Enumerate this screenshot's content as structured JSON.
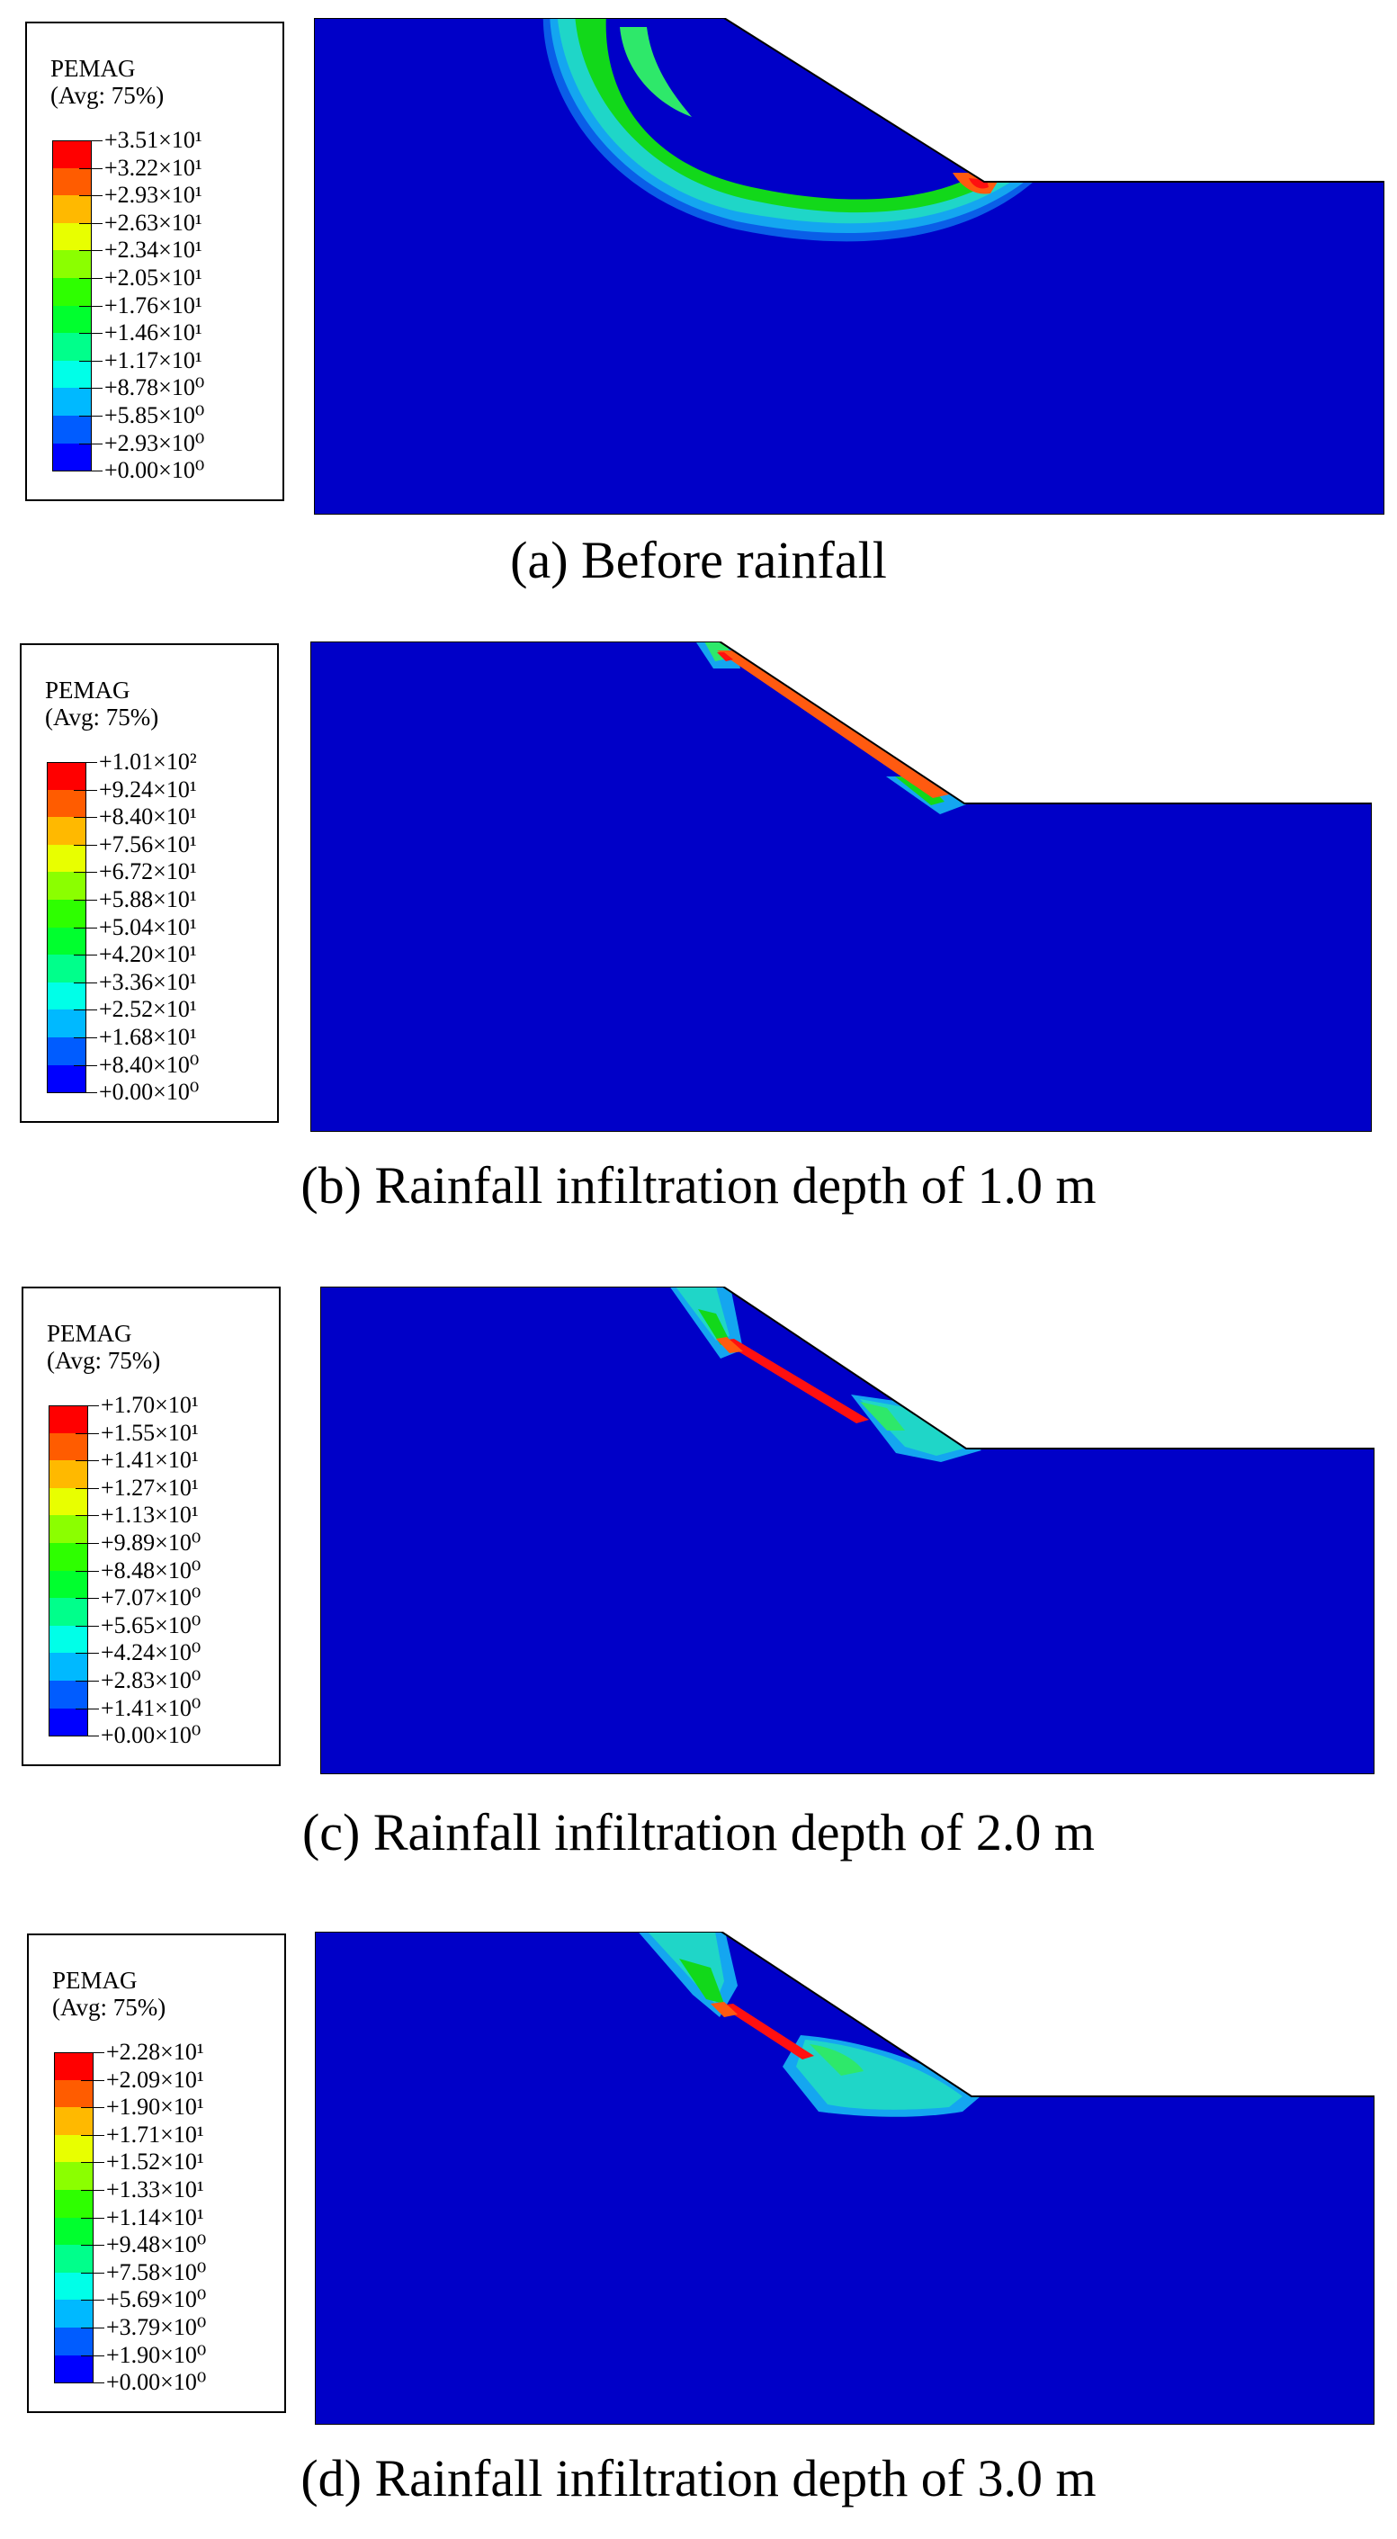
{
  "colors": {
    "blue": "#0000c8",
    "scale": [
      "#0000ff",
      "#005cff",
      "#00b9ff",
      "#00ffe8",
      "#00ff8b",
      "#00ff2e",
      "#2eff00",
      "#8bff00",
      "#e8ff00",
      "#ffb900",
      "#ff5c00",
      "#ff0000"
    ],
    "contour_green": "#12d81a",
    "contour_lightgreen": "#2ee86a",
    "contour_cyan": "#1fd6c8",
    "contour_sky": "#14a6f0",
    "contour_mid": "#0a5ee8",
    "band_orange": "#ff5a10",
    "band_red": "#ff1010"
  },
  "panels": [
    {
      "legend": {
        "title": "PEMAG",
        "subtitle": "(Avg: 75%)",
        "labels": [
          "+3.51×10¹",
          "+3.22×10¹",
          "+2.93×10¹",
          "+2.63×10¹",
          "+2.34×10¹",
          "+2.05×10¹",
          "+1.76×10¹",
          "+1.46×10¹",
          "+1.17×10¹",
          "+8.78×10⁰",
          "+5.85×10⁰",
          "+2.93×10⁰",
          "+0.00×10⁰"
        ]
      },
      "caption": "(a) Before rainfall"
    },
    {
      "legend": {
        "title": "PEMAG",
        "subtitle": "(Avg: 75%)",
        "labels": [
          "+1.01×10²",
          "+9.24×10¹",
          "+8.40×10¹",
          "+7.56×10¹",
          "+6.72×10¹",
          "+5.88×10¹",
          "+5.04×10¹",
          "+4.20×10¹",
          "+3.36×10¹",
          "+2.52×10¹",
          "+1.68×10¹",
          "+8.40×10⁰",
          "+0.00×10⁰"
        ]
      },
      "caption": "(b) Rainfall infiltration depth of 1.0 m"
    },
    {
      "legend": {
        "title": "PEMAG",
        "subtitle": "(Avg: 75%)",
        "labels": [
          "+1.70×10¹",
          "+1.55×10¹",
          "+1.41×10¹",
          "+1.27×10¹",
          "+1.13×10¹",
          "+9.89×10⁰",
          "+8.48×10⁰",
          "+7.07×10⁰",
          "+5.65×10⁰",
          "+4.24×10⁰",
          "+2.83×10⁰",
          "+1.41×10⁰",
          "+0.00×10⁰"
        ]
      },
      "caption": "(c) Rainfall infiltration depth of 2.0 m"
    },
    {
      "legend": {
        "title": "PEMAG",
        "subtitle": "(Avg: 75%)",
        "labels": [
          "+2.28×10¹",
          "+2.09×10¹",
          "+1.90×10¹",
          "+1.71×10¹",
          "+1.52×10¹",
          "+1.33×10¹",
          "+1.14×10¹",
          "+9.48×10⁰",
          "+7.58×10⁰",
          "+5.69×10⁰",
          "+3.79×10⁰",
          "+1.90×10⁰",
          "+0.00×10⁰"
        ]
      },
      "caption": "(d) Rainfall infiltration depth of 3.0 m"
    }
  ]
}
